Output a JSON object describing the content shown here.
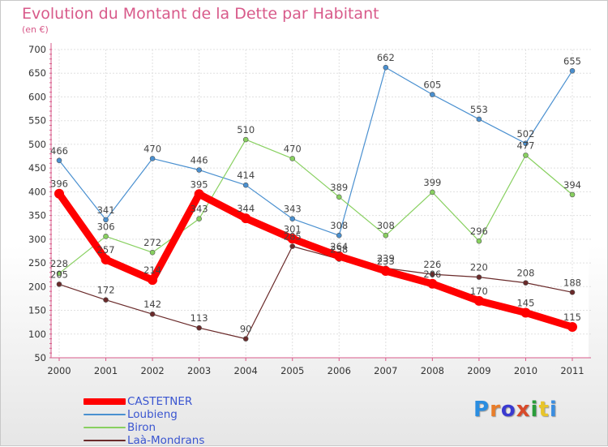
{
  "header": {
    "title": "Evolution du Montant de la Dette par Habitant",
    "subtitle": "(en €)"
  },
  "brand": {
    "text": "Proxiti",
    "colors": [
      "#2a8de0",
      "#e87d2a",
      "#3a3ad0",
      "#d84a2a",
      "#2a9d3a",
      "#e8c52a",
      "#3a8de0"
    ]
  },
  "chart_data": {
    "type": "line",
    "x": [
      "2000",
      "2001",
      "2002",
      "2003",
      "2004",
      "2005",
      "2006",
      "2007",
      "2008",
      "2009",
      "2010",
      "2011"
    ],
    "yticks": [
      50,
      100,
      150,
      200,
      250,
      300,
      350,
      400,
      450,
      500,
      550,
      600,
      650,
      700
    ],
    "ylim": [
      50,
      700
    ],
    "grid": true,
    "legend": "bottom-left",
    "series": [
      {
        "name": "CASTETNER",
        "color": "#ff0000",
        "values": [
          396,
          257,
          214,
          395,
          344,
          301,
          264,
          233,
          206,
          170,
          145,
          115
        ]
      },
      {
        "name": "Loubieng",
        "color": "#4a90d0",
        "values": [
          466,
          341,
          470,
          446,
          414,
          343,
          308,
          662,
          605,
          553,
          502,
          655
        ]
      },
      {
        "name": "Biron",
        "color": "#88d060",
        "values": [
          228,
          306,
          272,
          343,
          510,
          470,
          389,
          308,
          399,
          296,
          477,
          394
        ]
      },
      {
        "name": "Laà-Mondrans",
        "color": "#6a2a2a",
        "values": [
          205,
          172,
          142,
          113,
          90,
          285,
          258,
          239,
          226,
          220,
          208,
          188
        ]
      }
    ]
  }
}
